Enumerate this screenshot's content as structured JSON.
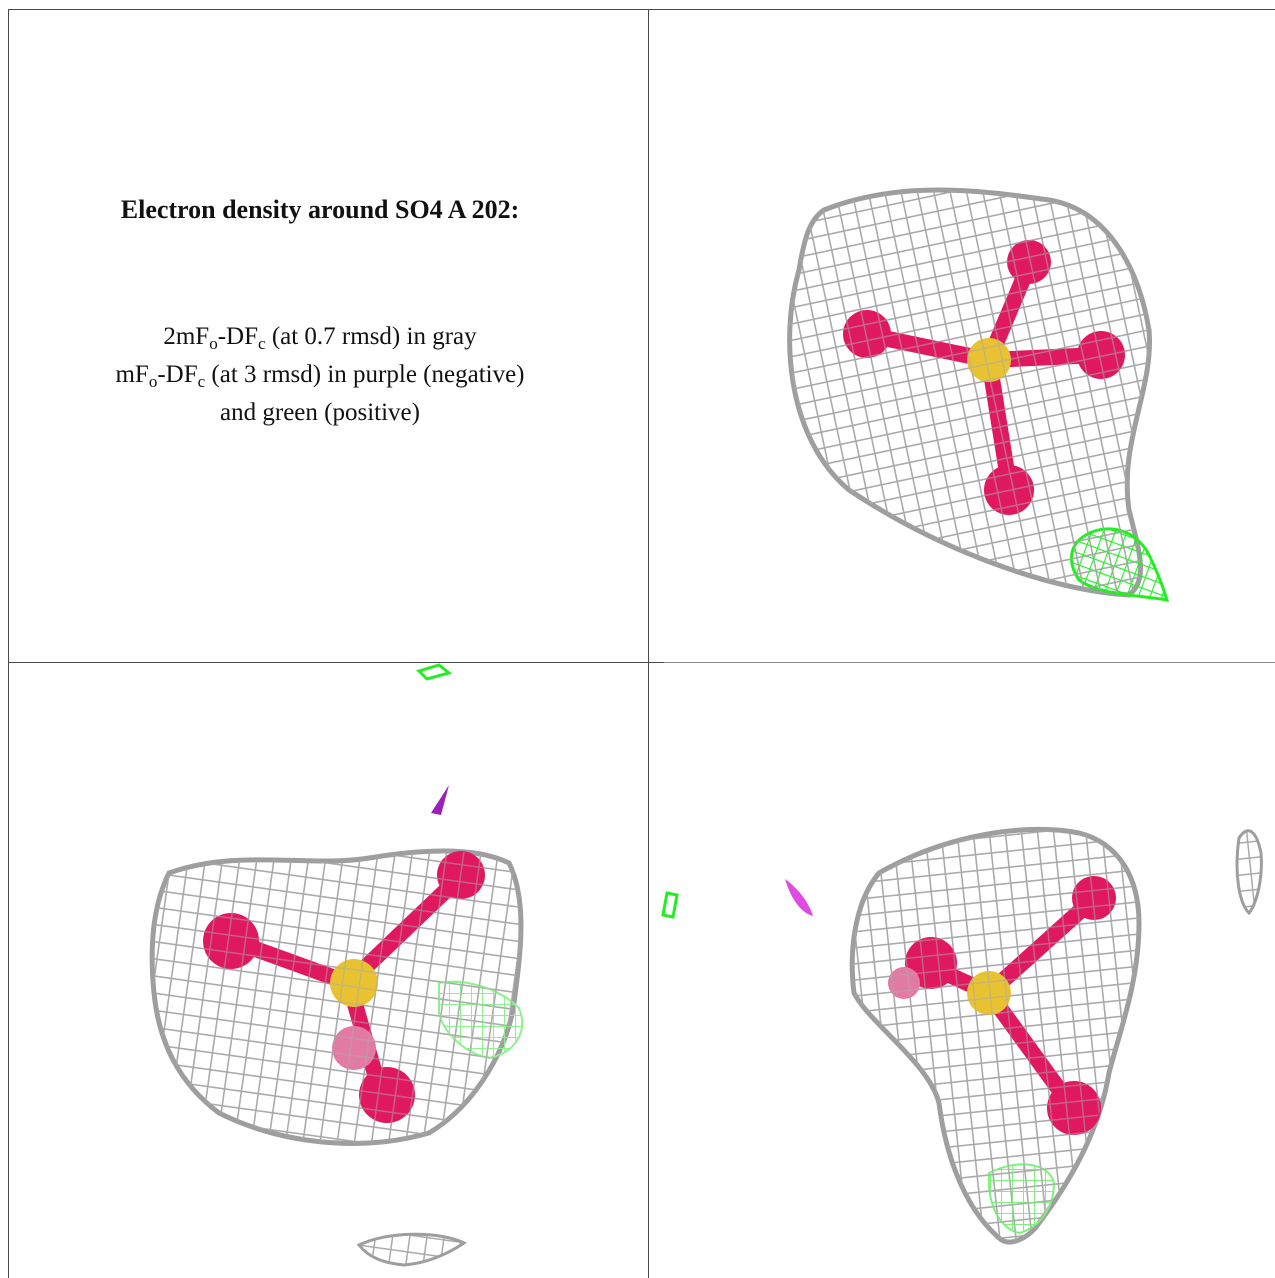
{
  "caption": {
    "title": "Electron density around SO4 A 202:",
    "map1": {
      "prefix": "2mF",
      "s1": "o",
      "mid": "-DF",
      "s2": "c",
      "suffix": " (at 0.7 rmsd) in gray"
    },
    "map2": {
      "prefix": "mF",
      "s1": "o",
      "mid": "-DF",
      "s2": "c",
      "suffix": " (at 3 rmsd) in purple (negative)"
    },
    "map2_cont": "and green (positive)"
  },
  "colors": {
    "mesh_2fofc": "#a9a9a9",
    "mesh_positive": "#22ee22",
    "mesh_negative": "#9b1fb8",
    "sulfur": "#e8c230",
    "oxygen": "#e0185e",
    "grid_line": "#4a4a4a"
  },
  "panels": [
    {
      "name": "view-1",
      "model": "SO4 ligand with density mesh"
    },
    {
      "name": "view-2",
      "model": "SO4 ligand with density mesh"
    },
    {
      "name": "view-3",
      "model": "SO4 ligand with density mesh"
    }
  ]
}
